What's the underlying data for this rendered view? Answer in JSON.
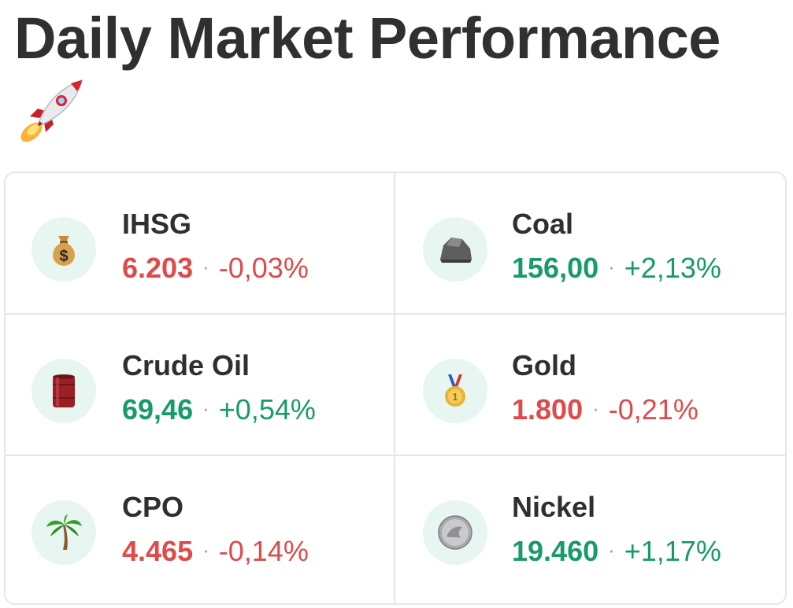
{
  "header": {
    "title": "Daily Market Performance",
    "emoji_icon": "rocket-icon"
  },
  "separator": "·",
  "colors": {
    "up": "#189a6a",
    "down": "#df4a4a",
    "icon_bg": "#e7f6f0",
    "border": "#e6e6e6"
  },
  "markets": [
    {
      "name": "IHSG",
      "price": "6.203",
      "change": "-0,03%",
      "direction": "down",
      "icon": "money-bag-icon"
    },
    {
      "name": "Coal",
      "price": "156,00",
      "change": "+2,13%",
      "direction": "up",
      "icon": "rock-icon"
    },
    {
      "name": "Crude Oil",
      "price": "69,46",
      "change": "+0,54%",
      "direction": "up",
      "icon": "oil-barrel-icon"
    },
    {
      "name": "Gold",
      "price": "1.800",
      "change": "-0,21%",
      "direction": "down",
      "icon": "gold-medal-icon"
    },
    {
      "name": "CPO",
      "price": "4.465",
      "change": "-0,14%",
      "direction": "down",
      "icon": "palm-tree-icon"
    },
    {
      "name": "Nickel",
      "price": "19.460",
      "change": "+1,17%",
      "direction": "up",
      "icon": "coin-icon"
    }
  ]
}
